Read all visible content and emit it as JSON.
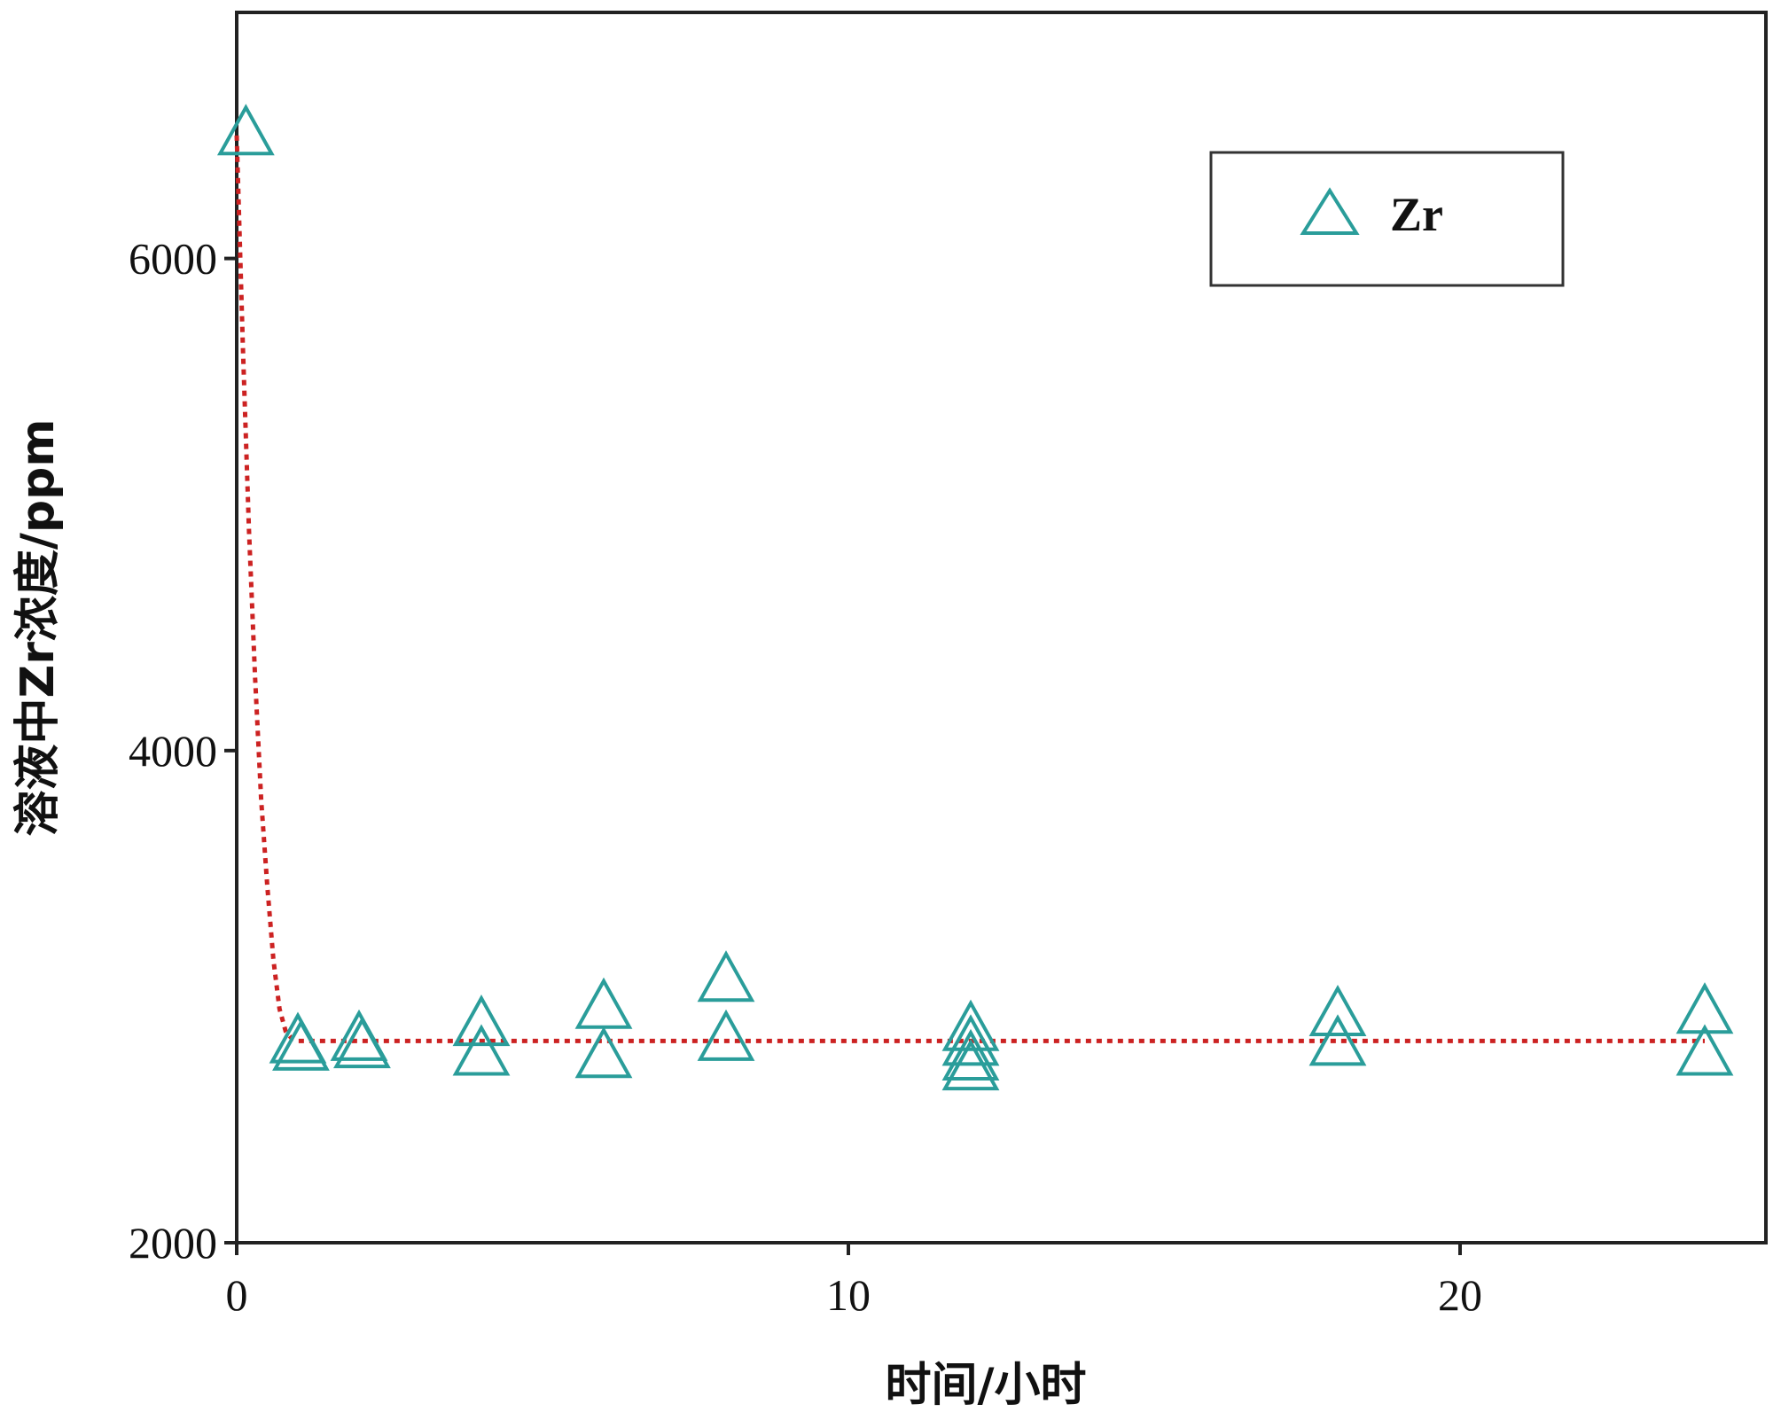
{
  "chart_data": {
    "type": "scatter",
    "xlabel": "时间/小时",
    "ylabel": "溶液中Zr浓度/ppm",
    "xlim": [
      0,
      25
    ],
    "ylim": [
      2000,
      7000
    ],
    "x_ticks": [
      0,
      10,
      20
    ],
    "x_tick_labels": [
      "0",
      "10",
      "20"
    ],
    "y_ticks": [
      2000,
      4000,
      6000
    ],
    "y_tick_labels": [
      "2000",
      "4000",
      "6000"
    ],
    "grid": false,
    "legend_position": "top-right",
    "marker_color": "#2a9d9a",
    "fit_line_color": "#cc2222",
    "series": [
      {
        "name": "Zr",
        "marker": "open-triangle",
        "x": [
          0.15,
          1,
          1.05,
          2,
          2.05,
          4,
          4,
          6,
          6,
          8,
          8,
          12,
          12,
          12,
          12,
          18,
          18,
          24,
          24
        ],
        "y": [
          6520,
          2830,
          2800,
          2840,
          2810,
          2900,
          2780,
          2970,
          2770,
          3080,
          2840,
          2880,
          2820,
          2760,
          2720,
          2940,
          2820,
          2950,
          2780
        ]
      }
    ],
    "fit_line": {
      "style": "dotted",
      "x": [
        0,
        0.1,
        0.2,
        0.3,
        0.4,
        0.5,
        0.6,
        0.7,
        0.8,
        0.9,
        1.0,
        24
      ],
      "y": [
        6500,
        5650,
        4900,
        4300,
        3800,
        3450,
        3150,
        2950,
        2860,
        2830,
        2820,
        2820
      ]
    }
  }
}
